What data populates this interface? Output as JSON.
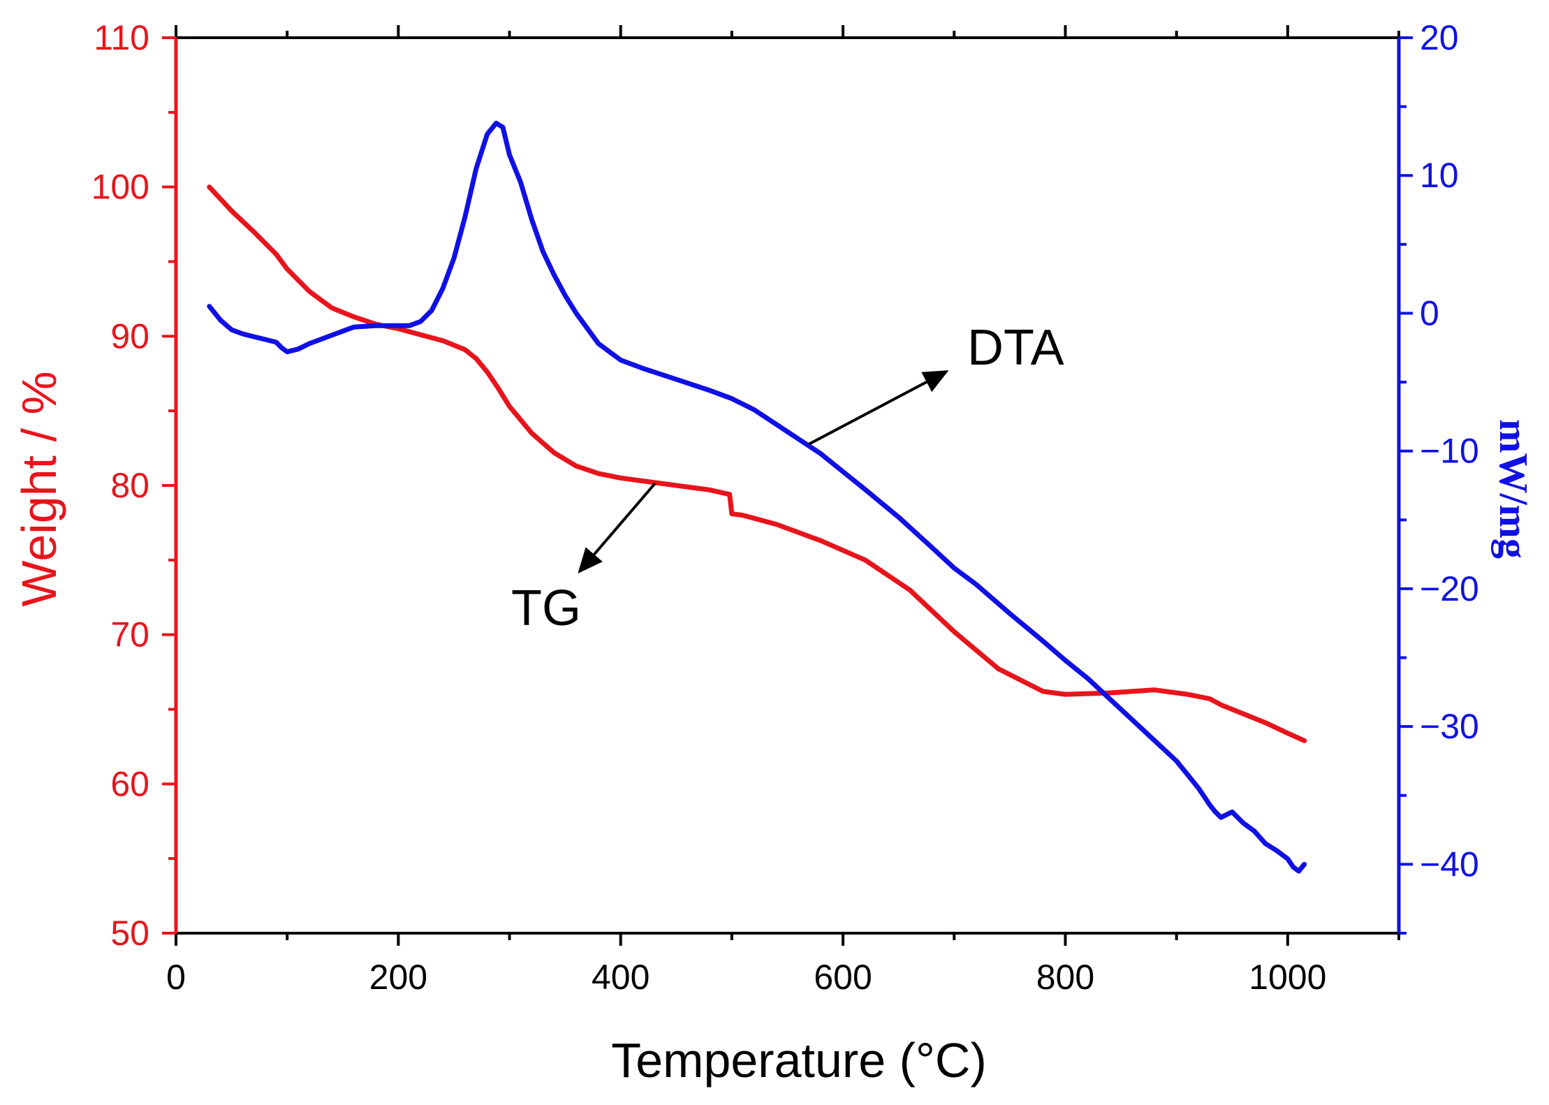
{
  "colors": {
    "tg": "#e8141c",
    "dta": "#1010e6",
    "axis": "#000000",
    "background": "#ffffff"
  },
  "chart_data": {
    "type": "line",
    "title": "",
    "xlabel": "Temperature (°C)",
    "ylabel_left": "Weight / %",
    "ylabel_right": "mW/mg",
    "xlim": [
      0,
      1100
    ],
    "ylim_left": [
      50,
      110
    ],
    "ylim_right": [
      -45,
      20
    ],
    "x_ticks": [
      0,
      200,
      400,
      600,
      800,
      1000
    ],
    "y_left_ticks": [
      50,
      60,
      70,
      80,
      90,
      100,
      110
    ],
    "y_right_ticks": [
      -40,
      -30,
      -20,
      -10,
      0,
      10,
      20
    ],
    "grid": false,
    "series": [
      {
        "name": "TG",
        "axis": "left",
        "x": [
          30,
          50,
          70,
          90,
          100,
          120,
          140,
          160,
          180,
          200,
          220,
          240,
          260,
          270,
          280,
          290,
          300,
          320,
          340,
          360,
          380,
          400,
          420,
          440,
          460,
          480,
          498,
          500,
          510,
          540,
          580,
          620,
          660,
          700,
          740,
          780,
          800,
          840,
          880,
          910,
          930,
          940,
          960,
          980,
          1000,
          1015
        ],
        "values": [
          100,
          98.4,
          97,
          95.5,
          94.5,
          93,
          91.9,
          91.3,
          90.8,
          90.5,
          90.1,
          89.7,
          89.1,
          88.5,
          87.6,
          86.5,
          85.3,
          83.5,
          82.2,
          81.3,
          80.8,
          80.5,
          80.3,
          80.1,
          79.9,
          79.7,
          79.4,
          78.1,
          78.0,
          77.4,
          76.3,
          75.0,
          73.0,
          70.2,
          67.7,
          66.2,
          66.0,
          66.1,
          66.3,
          66.0,
          65.7,
          65.3,
          64.7,
          64.1,
          63.4,
          62.9
        ]
      },
      {
        "name": "DTA",
        "axis": "right",
        "x": [
          30,
          40,
          50,
          60,
          70,
          80,
          90,
          95,
          100,
          110,
          120,
          140,
          160,
          180,
          200,
          210,
          220,
          230,
          240,
          250,
          260,
          270,
          280,
          288,
          294,
          300,
          310,
          320,
          330,
          340,
          350,
          360,
          380,
          400,
          420,
          450,
          480,
          500,
          520,
          550,
          580,
          600,
          620,
          650,
          680,
          700,
          720,
          750,
          780,
          800,
          820,
          840,
          860,
          880,
          900,
          910,
          920,
          930,
          935,
          940,
          950,
          960,
          970,
          980,
          990,
          1000,
          1005,
          1010,
          1015
        ],
        "values": [
          0.5,
          -0.5,
          -1.2,
          -1.5,
          -1.7,
          -1.9,
          -2.1,
          -2.5,
          -2.8,
          -2.6,
          -2.2,
          -1.6,
          -1.0,
          -0.9,
          -0.9,
          -0.9,
          -0.6,
          0.2,
          1.8,
          4.0,
          7.0,
          10.5,
          13,
          13.8,
          13.5,
          11.5,
          9.5,
          6.8,
          4.5,
          2.8,
          1.3,
          0.0,
          -2.2,
          -3.4,
          -4.0,
          -4.8,
          -5.6,
          -6.2,
          -7.0,
          -8.6,
          -10.2,
          -11.5,
          -12.8,
          -14.8,
          -17.0,
          -18.5,
          -19.7,
          -21.8,
          -23.8,
          -25.2,
          -26.5,
          -28.0,
          -29.5,
          -31.0,
          -32.5,
          -33.5,
          -34.5,
          -35.7,
          -36.2,
          -36.6,
          -36.2,
          -37.0,
          -37.6,
          -38.5,
          -39.0,
          -39.6,
          -40.2,
          -40.5,
          -40.0
        ]
      }
    ],
    "annotations": [
      {
        "label": "DTA",
        "target_series": "DTA"
      },
      {
        "label": "TG",
        "target_series": "TG"
      }
    ]
  }
}
